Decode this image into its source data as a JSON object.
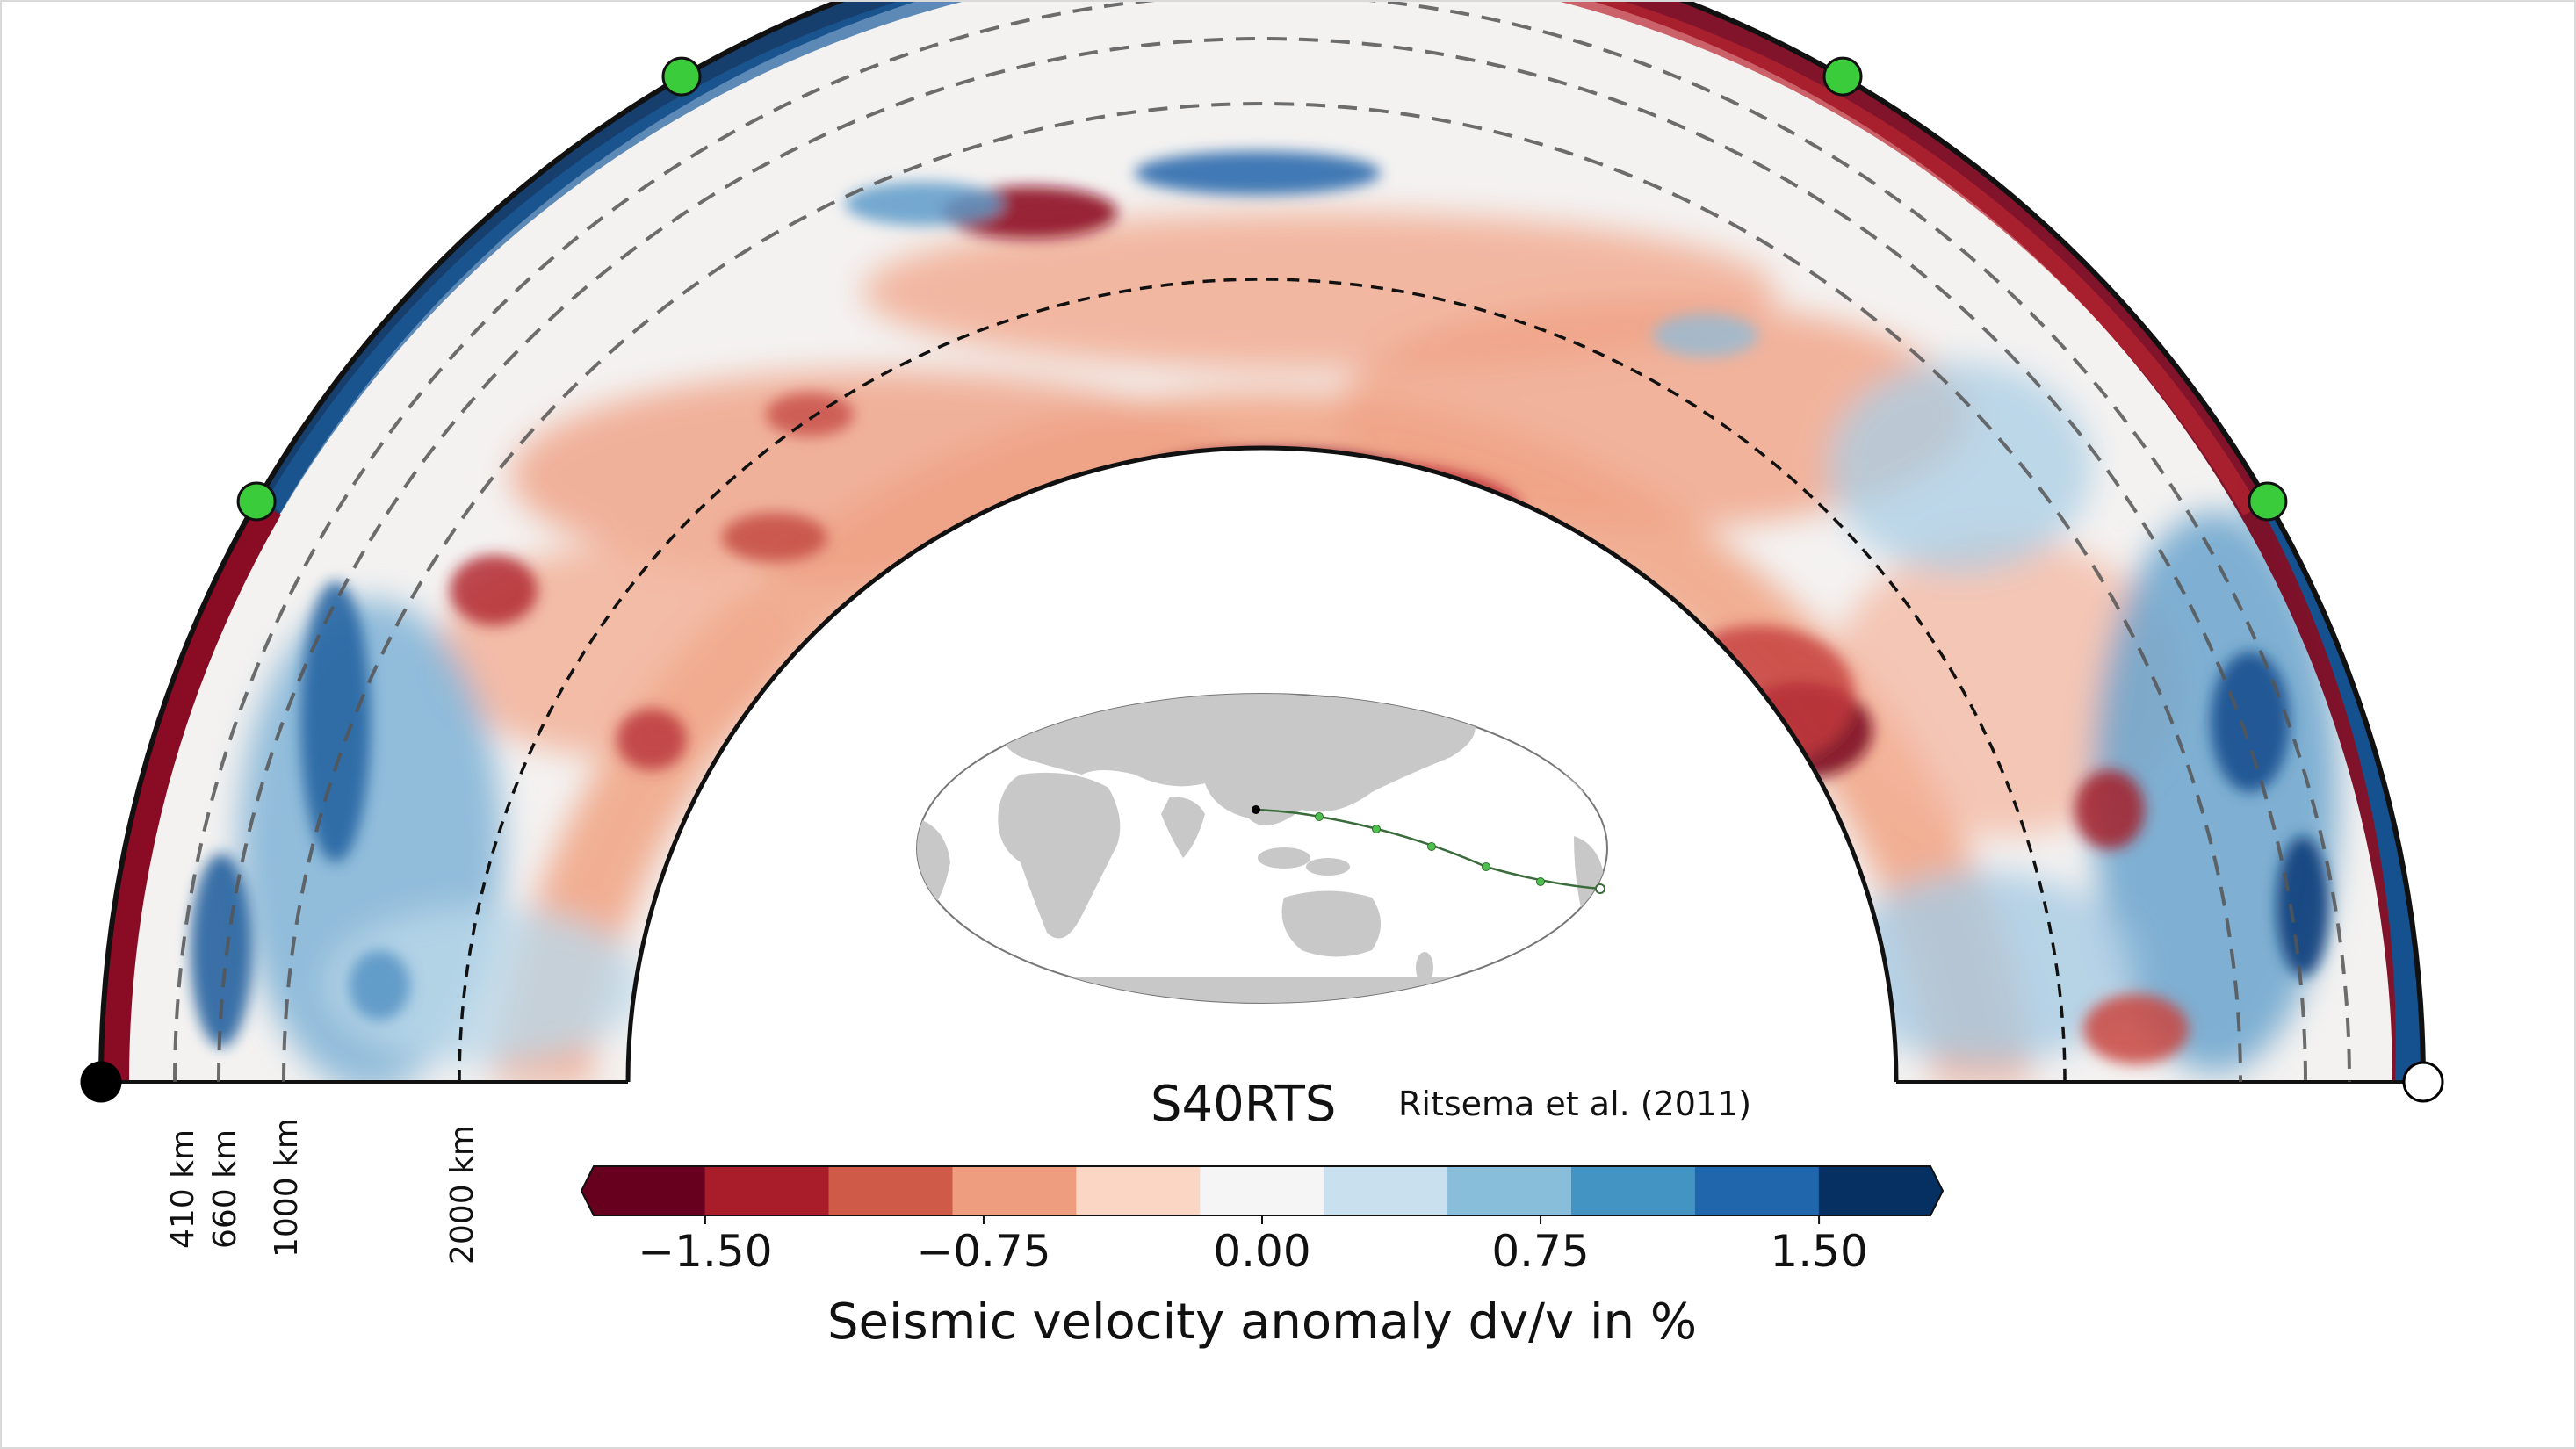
{
  "model": {
    "name": "S40RTS",
    "citation": "Ritsema et al. (2011)"
  },
  "depth_lines": [
    {
      "label": "410 km",
      "depth_km": 410
    },
    {
      "label": "660 km",
      "depth_km": 660
    },
    {
      "label": "1000 km",
      "depth_km": 1000
    },
    {
      "label": "2000 km",
      "depth_km": 2000
    }
  ],
  "colorbar": {
    "label": "Seismic velocity anomaly dv/v in %",
    "ticks": [
      {
        "label": "−1.50",
        "value": -1.5
      },
      {
        "label": "−0.75",
        "value": -0.75
      },
      {
        "label": "0.00",
        "value": 0
      },
      {
        "label": "0.75",
        "value": 0.75
      },
      {
        "label": "1.50",
        "value": 1.5
      }
    ],
    "colors": [
      "#67001f",
      "#a91d2b",
      "#d05a48",
      "#ef9d7f",
      "#fbd6c4",
      "#f5f5f5",
      "#c9e0ef",
      "#89bedb",
      "#4393c3",
      "#2066ac",
      "#053061"
    ],
    "range": [
      -1.5,
      1.5
    ]
  },
  "colors": {
    "surface_marker": "#3bcc3b",
    "source_marker": "#000000",
    "receiver_marker": "#ffffff",
    "map_land": "#c8c8c8",
    "path": "#3a6b3a"
  }
}
